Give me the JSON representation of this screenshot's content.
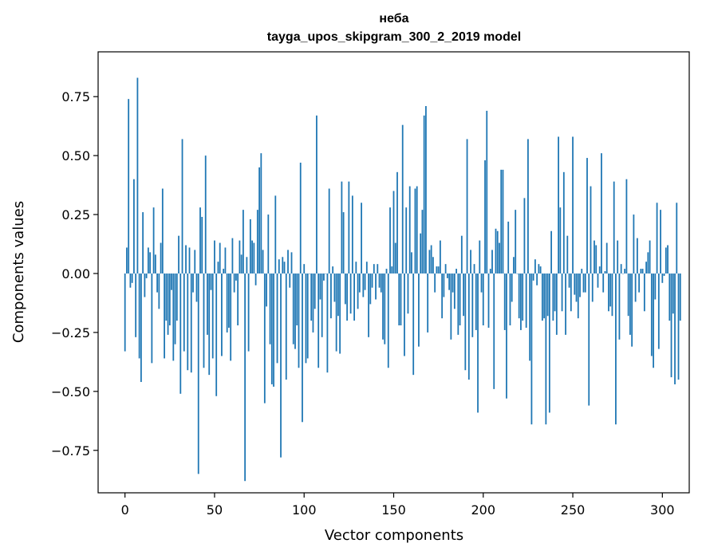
{
  "chart_data": {
    "type": "bar",
    "title": "неба",
    "subtitle": "tayga_upos_skipgram_300_2_2019 model",
    "xlabel": "Vector components",
    "ylabel": "Components values",
    "xlim": [
      -15,
      315
    ],
    "ylim": [
      -0.93,
      0.94
    ],
    "xticks": [
      0,
      50,
      100,
      150,
      200,
      250,
      300
    ],
    "yticks": [
      -0.75,
      -0.5,
      -0.25,
      0.0,
      0.25,
      0.5,
      0.75
    ],
    "xtick_labels": [
      "0",
      "50",
      "100",
      "150",
      "200",
      "250",
      "300"
    ],
    "ytick_labels": [
      "−0.75",
      "−0.50",
      "−0.25",
      "0.00",
      "0.25",
      "0.50",
      "0.75"
    ],
    "bar_color": "#1f77b4",
    "values": [
      -0.33,
      0.11,
      0.74,
      -0.06,
      -0.04,
      0.4,
      -0.27,
      0.83,
      -0.36,
      -0.46,
      0.26,
      -0.1,
      -0.02,
      0.11,
      0.09,
      -0.38,
      0.28,
      0.08,
      -0.08,
      -0.15,
      0.13,
      0.36,
      -0.36,
      -0.2,
      -0.26,
      -0.22,
      -0.07,
      -0.37,
      -0.3,
      -0.2,
      0.16,
      -0.51,
      0.57,
      -0.33,
      0.12,
      -0.41,
      0.11,
      -0.42,
      -0.08,
      0.1,
      -0.12,
      -0.85,
      0.28,
      0.24,
      -0.4,
      0.5,
      -0.26,
      -0.43,
      -0.07,
      -0.36,
      0.14,
      -0.52,
      0.05,
      0.13,
      -0.35,
      0.02,
      0.11,
      -0.25,
      -0.23,
      -0.37,
      0.15,
      -0.08,
      -0.03,
      -0.22,
      0.14,
      0.08,
      0.27,
      -0.88,
      0.07,
      -0.33,
      0.23,
      0.14,
      0.13,
      -0.05,
      0.27,
      0.45,
      0.51,
      0.1,
      -0.55,
      -0.14,
      0.25,
      -0.3,
      -0.47,
      -0.48,
      0.33,
      -0.38,
      0.06,
      -0.78,
      0.07,
      0.05,
      -0.45,
      0.1,
      -0.06,
      0.09,
      -0.3,
      -0.32,
      -0.22,
      -0.4,
      0.47,
      -0.63,
      0.04,
      -0.38,
      -0.36,
      0.0,
      -0.2,
      -0.25,
      -0.15,
      0.67,
      -0.4,
      -0.11,
      -0.27,
      -0.03,
      0.0,
      -0.42,
      0.36,
      -0.19,
      0.03,
      -0.12,
      -0.33,
      -0.18,
      -0.34,
      0.39,
      0.26,
      -0.13,
      -0.2,
      0.39,
      -0.17,
      0.33,
      -0.2,
      0.05,
      -0.15,
      -0.08,
      0.3,
      -0.1,
      -0.07,
      0.05,
      -0.27,
      -0.13,
      -0.06,
      0.04,
      -0.11,
      0.04,
      -0.06,
      -0.08,
      -0.28,
      -0.3,
      0.02,
      -0.4,
      0.28,
      0.03,
      0.35,
      0.13,
      0.43,
      -0.22,
      -0.22,
      0.63,
      -0.35,
      0.28,
      -0.17,
      0.37,
      0.09,
      -0.43,
      0.36,
      0.37,
      -0.31,
      0.17,
      0.27,
      0.67,
      0.71,
      -0.25,
      0.1,
      0.12,
      0.07,
      -0.08,
      0.03,
      0.03,
      0.14,
      -0.19,
      -0.1,
      0.04,
      -0.02,
      -0.07,
      -0.28,
      -0.08,
      -0.15,
      0.02,
      -0.26,
      -0.22,
      0.16,
      -0.18,
      -0.41,
      0.57,
      -0.45,
      0.1,
      -0.27,
      0.04,
      -0.24,
      -0.59,
      0.14,
      -0.08,
      -0.22,
      0.48,
      0.69,
      -0.23,
      0.02,
      0.1,
      -0.49,
      0.19,
      0.18,
      0.13,
      0.44,
      0.44,
      -0.24,
      -0.53,
      0.22,
      -0.22,
      -0.12,
      0.07,
      0.27,
      0.0,
      -0.19,
      -0.24,
      -0.2,
      0.32,
      -0.23,
      0.57,
      -0.37,
      -0.64,
      -0.03,
      0.06,
      -0.05,
      0.04,
      0.03,
      -0.2,
      -0.19,
      -0.64,
      -0.18,
      -0.59,
      0.18,
      -0.2,
      -0.16,
      -0.26,
      0.58,
      0.28,
      -0.16,
      0.43,
      -0.26,
      0.16,
      -0.06,
      -0.16,
      0.58,
      -0.09,
      -0.12,
      -0.19,
      -0.1,
      0.02,
      -0.08,
      -0.08,
      0.49,
      -0.56,
      0.37,
      -0.12,
      0.14,
      0.12,
      -0.06,
      0.03,
      0.51,
      -0.08,
      0.01,
      0.13,
      -0.16,
      -0.14,
      -0.18,
      0.39,
      -0.64,
      0.14,
      -0.28,
      0.04,
      0.0,
      0.02,
      0.4,
      -0.18,
      -0.26,
      -0.31,
      0.25,
      -0.12,
      0.15,
      -0.08,
      0.02,
      0.02,
      -0.16,
      0.05,
      0.09,
      0.14,
      -0.35,
      -0.4,
      -0.11,
      0.3,
      -0.32,
      0.27,
      -0.04,
      -0.01,
      0.11,
      0.12,
      -0.2,
      -0.44,
      -0.17,
      -0.47,
      0.3,
      -0.45,
      -0.2
    ]
  }
}
